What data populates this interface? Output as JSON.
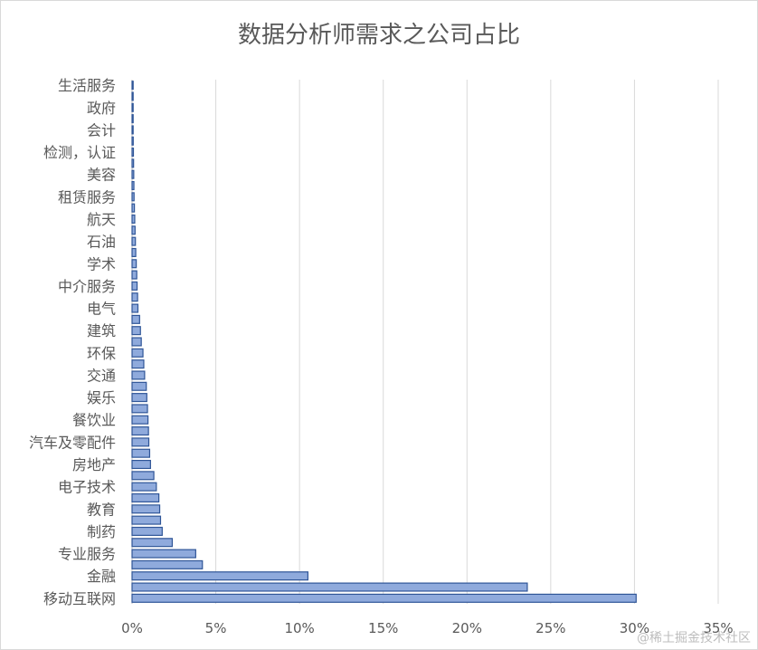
{
  "chart_data": {
    "type": "bar",
    "orientation": "horizontal",
    "title": "数据分析师需求之公司占比",
    "xlabel": "",
    "ylabel": "",
    "xlim": [
      0,
      35
    ],
    "x_ticks": [
      "0%",
      "5%",
      "10%",
      "15%",
      "20%",
      "25%",
      "30%",
      "35%"
    ],
    "grid": true,
    "legend": "none",
    "bar_color": "#8faadc",
    "bar_edge_color": "#2f5597",
    "categories": [
      {
        "label": "移动互联网",
        "value": 30.1
      },
      {
        "label": "",
        "value": 23.6
      },
      {
        "label": "金融",
        "value": 10.5
      },
      {
        "label": "",
        "value": 4.2
      },
      {
        "label": "专业服务",
        "value": 3.8
      },
      {
        "label": "",
        "value": 2.4
      },
      {
        "label": "制药",
        "value": 1.8
      },
      {
        "label": "",
        "value": 1.7
      },
      {
        "label": "教育",
        "value": 1.65
      },
      {
        "label": "",
        "value": 1.6
      },
      {
        "label": "电子技术",
        "value": 1.45
      },
      {
        "label": "",
        "value": 1.3
      },
      {
        "label": "房地产",
        "value": 1.1
      },
      {
        "label": "",
        "value": 1.05
      },
      {
        "label": "汽车及零配件",
        "value": 1.0
      },
      {
        "label": "",
        "value": 0.98
      },
      {
        "label": "餐饮业",
        "value": 0.95
      },
      {
        "label": "",
        "value": 0.92
      },
      {
        "label": "娱乐",
        "value": 0.88
      },
      {
        "label": "",
        "value": 0.85
      },
      {
        "label": "交通",
        "value": 0.75
      },
      {
        "label": "",
        "value": 0.7
      },
      {
        "label": "环保",
        "value": 0.65
      },
      {
        "label": "",
        "value": 0.55
      },
      {
        "label": "建筑",
        "value": 0.5
      },
      {
        "label": "",
        "value": 0.45
      },
      {
        "label": "电气",
        "value": 0.35
      },
      {
        "label": "",
        "value": 0.33
      },
      {
        "label": "中介服务",
        "value": 0.3
      },
      {
        "label": "",
        "value": 0.28
      },
      {
        "label": "学术",
        "value": 0.25
      },
      {
        "label": "",
        "value": 0.22
      },
      {
        "label": "石油",
        "value": 0.2
      },
      {
        "label": "",
        "value": 0.18
      },
      {
        "label": "航天",
        "value": 0.16
      },
      {
        "label": "",
        "value": 0.14
      },
      {
        "label": "租赁服务",
        "value": 0.12
      },
      {
        "label": "",
        "value": 0.11
      },
      {
        "label": "美容",
        "value": 0.1
      },
      {
        "label": "",
        "value": 0.09
      },
      {
        "label": "检测，认证",
        "value": 0.08
      },
      {
        "label": "",
        "value": 0.07
      },
      {
        "label": "会计",
        "value": 0.06
      },
      {
        "label": "",
        "value": 0.05
      },
      {
        "label": "政府",
        "value": 0.04
      },
      {
        "label": "",
        "value": 0.03
      },
      {
        "label": "生活服务",
        "value": 0.02
      }
    ]
  },
  "watermark": "@稀土掘金技术社区"
}
